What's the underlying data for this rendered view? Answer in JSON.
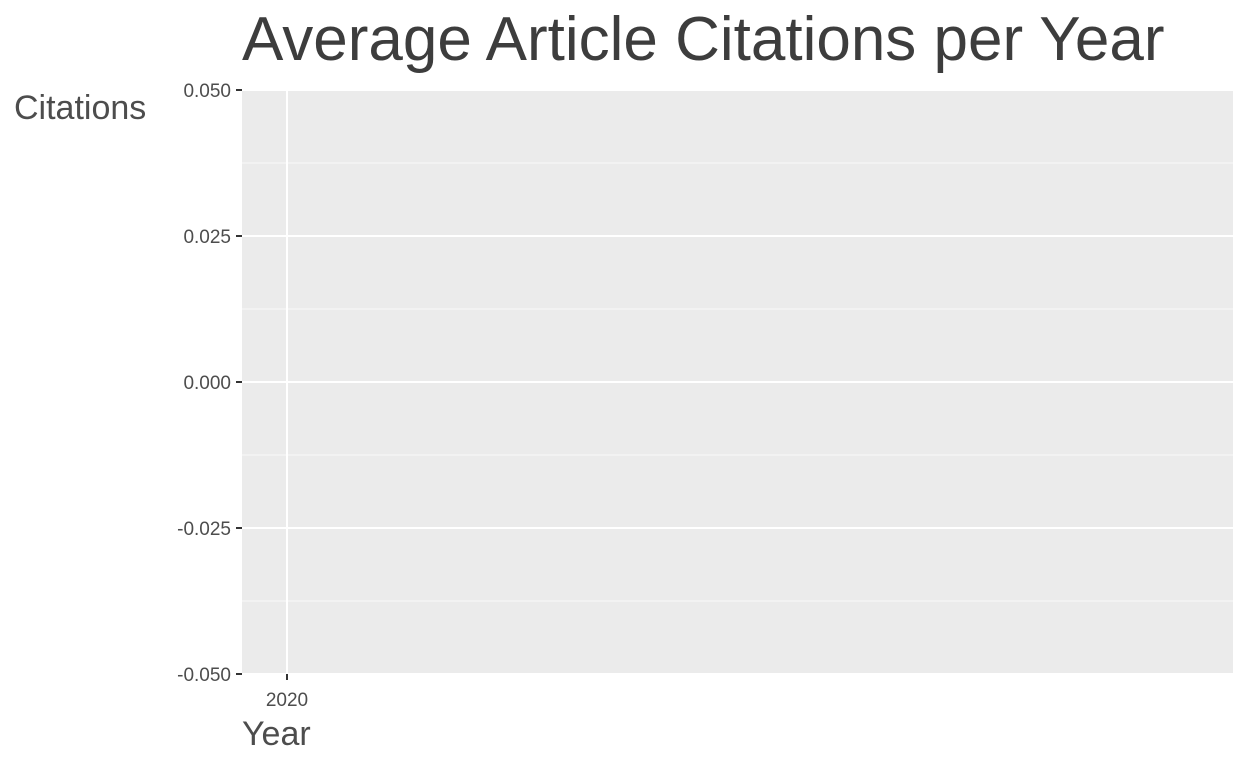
{
  "chart_data": {
    "type": "line",
    "title": "Average Article Citations per Year",
    "xlabel": "Year",
    "ylabel": "Citations",
    "x_ticks": [
      "2020"
    ],
    "x_tick_values": [
      2020
    ],
    "y_ticks": [
      "0.050",
      "0.025",
      "0.000",
      "-0.025",
      "-0.050"
    ],
    "y_tick_values": [
      0.05,
      0.025,
      0.0,
      -0.025,
      -0.05
    ],
    "ylim": [
      -0.05,
      0.05
    ],
    "xlim": [
      2020,
      2041.5
    ],
    "grid": true,
    "series": [],
    "colors": {
      "panel_background": "#ebebeb",
      "grid_major": "#ffffff",
      "grid_minor": "#f5f5f5",
      "axis_text": "#4d4d4d",
      "title_text": "#3d3d3d"
    }
  }
}
